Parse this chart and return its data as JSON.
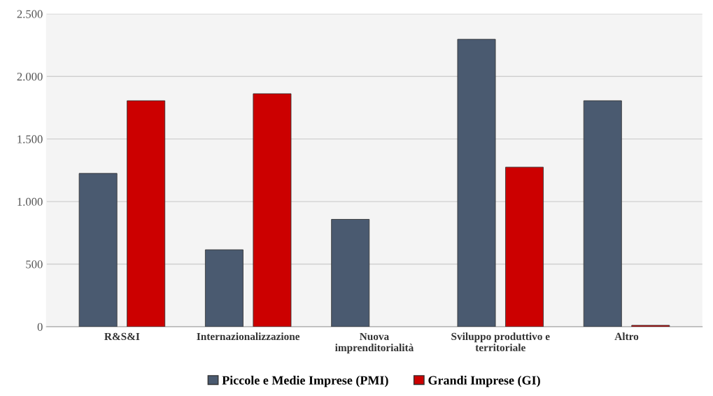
{
  "chart_data": {
    "type": "bar",
    "categories": [
      "R&S&I",
      "Internazionalizzazione",
      "Nuova\nimprenditorialità",
      "Sviluppo produttivo e\nterritoriale",
      "Altro"
    ],
    "series": [
      {
        "name": "Piccole e Medie Imprese (PMI)",
        "color": "#4a5a70",
        "values": [
          1225,
          615,
          858,
          2297,
          1806
        ]
      },
      {
        "name": "Grandi Imprese (GI)",
        "color": "#cc0000",
        "values": [
          1806,
          1862,
          null,
          1275,
          11
        ]
      }
    ],
    "ylim": [
      0,
      2500
    ],
    "yticks": [
      0,
      {
        "value": 500,
        "label": "500"
      },
      {
        "value": 1000,
        "label": "1.000"
      },
      {
        "value": 1500,
        "label": "1.500"
      },
      {
        "value": 2000,
        "label": "2.000"
      },
      {
        "value": 2500,
        "label": "2.500"
      }
    ],
    "grid": "y",
    "legend": "bottom"
  }
}
